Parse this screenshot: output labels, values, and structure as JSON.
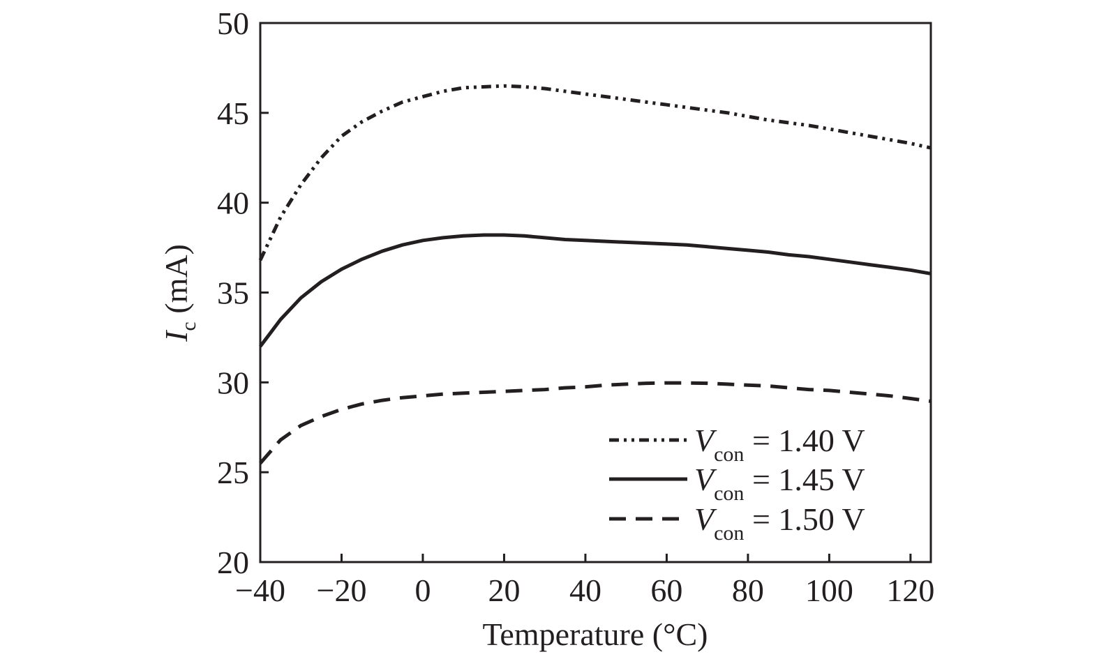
{
  "chart_data": {
    "type": "line",
    "xlabel": "Temperature (°C)",
    "ylabel_main": "I",
    "ylabel_sub": "c",
    "ylabel_unit": " (mA)",
    "xlim": [
      -40,
      125
    ],
    "ylim": [
      20,
      50
    ],
    "xticks": [
      -40,
      -20,
      0,
      20,
      40,
      60,
      80,
      100,
      120
    ],
    "xtick_labels": [
      "−40",
      "−20",
      "0",
      "20",
      "40",
      "60",
      "80",
      "100",
      "120"
    ],
    "yticks": [
      20,
      25,
      30,
      35,
      40,
      45,
      50
    ],
    "ytick_labels": [
      "20",
      "25",
      "30",
      "35",
      "40",
      "45",
      "50"
    ],
    "grid": false,
    "legend_position": "bottom-right",
    "x": [
      -40,
      -35,
      -30,
      -25,
      -20,
      -15,
      -10,
      -5,
      0,
      5,
      10,
      15,
      20,
      25,
      30,
      35,
      40,
      45,
      50,
      55,
      60,
      65,
      70,
      75,
      80,
      85,
      90,
      95,
      100,
      105,
      110,
      115,
      120,
      125
    ],
    "series": [
      {
        "legend_main": "V",
        "legend_sub": "con",
        "legend_value": " = 1.40 V",
        "style": "dash-dot-dot",
        "values": [
          36.8,
          39.2,
          41.0,
          42.5,
          43.7,
          44.5,
          45.1,
          45.6,
          45.9,
          46.2,
          46.4,
          46.45,
          46.5,
          46.45,
          46.35,
          46.2,
          46.05,
          45.9,
          45.75,
          45.6,
          45.45,
          45.3,
          45.15,
          45.0,
          44.8,
          44.6,
          44.45,
          44.3,
          44.1,
          43.9,
          43.7,
          43.5,
          43.3,
          43.05
        ]
      },
      {
        "legend_main": "V",
        "legend_sub": "con",
        "legend_value": " = 1.45 V",
        "style": "solid",
        "values": [
          32.0,
          33.5,
          34.7,
          35.6,
          36.3,
          36.85,
          37.3,
          37.65,
          37.9,
          38.05,
          38.15,
          38.2,
          38.2,
          38.15,
          38.05,
          37.95,
          37.9,
          37.85,
          37.8,
          37.75,
          37.7,
          37.65,
          37.55,
          37.45,
          37.35,
          37.25,
          37.1,
          37.0,
          36.85,
          36.7,
          36.55,
          36.4,
          36.25,
          36.05
        ]
      },
      {
        "legend_main": "V",
        "legend_sub": "con",
        "legend_value": " = 1.50 V",
        "style": "dashed",
        "values": [
          25.5,
          26.8,
          27.6,
          28.1,
          28.5,
          28.8,
          29.0,
          29.15,
          29.25,
          29.35,
          29.4,
          29.45,
          29.5,
          29.55,
          29.6,
          29.7,
          29.75,
          29.85,
          29.9,
          29.95,
          29.97,
          29.97,
          29.95,
          29.9,
          29.85,
          29.8,
          29.7,
          29.6,
          29.55,
          29.45,
          29.35,
          29.25,
          29.1,
          28.95
        ]
      }
    ]
  }
}
